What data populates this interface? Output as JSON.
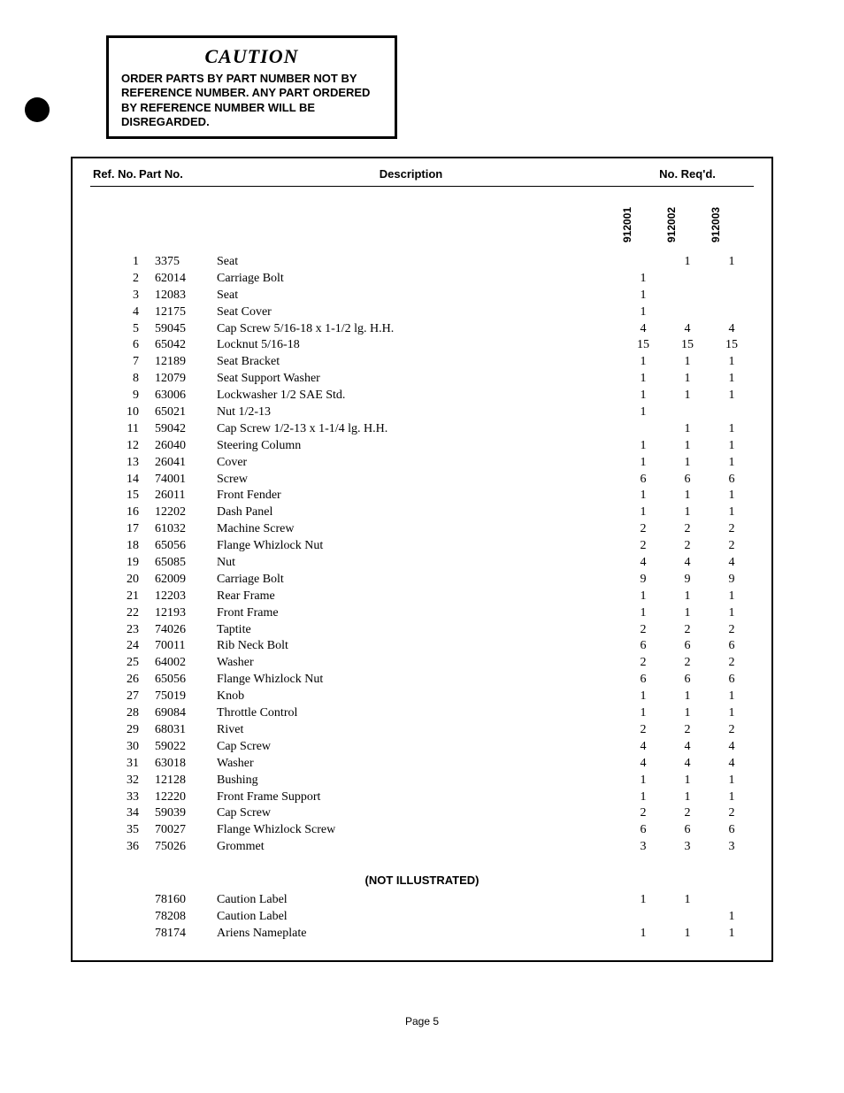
{
  "caution": {
    "title": "CAUTION",
    "text": "ORDER PARTS BY PART NUMBER NOT BY REFERENCE NUMBER. ANY PART ORDERED BY REFERENCE NUMBER WILL BE DISREGARDED."
  },
  "headers": {
    "ref": "Ref. No.",
    "part": "Part No.",
    "desc": "Description",
    "qty": "No. Req'd."
  },
  "models": [
    "912001",
    "912002",
    "912003"
  ],
  "rows": [
    {
      "ref": "1",
      "part": "3375",
      "desc": "Seat",
      "q": [
        "",
        "1",
        "1"
      ]
    },
    {
      "ref": "2",
      "part": "62014",
      "desc": "Carriage Bolt",
      "q": [
        "1",
        "",
        ""
      ]
    },
    {
      "ref": "3",
      "part": "12083",
      "desc": "Seat",
      "q": [
        "1",
        "",
        ""
      ]
    },
    {
      "ref": "4",
      "part": "12175",
      "desc": "Seat Cover",
      "q": [
        "1",
        "",
        ""
      ]
    },
    {
      "ref": "5",
      "part": "59045",
      "desc": "Cap Screw 5/16-18 x 1-1/2 lg. H.H.",
      "q": [
        "4",
        "4",
        "4"
      ]
    },
    {
      "ref": "6",
      "part": "65042",
      "desc": "Locknut 5/16-18",
      "q": [
        "15",
        "15",
        "15"
      ]
    },
    {
      "ref": "7",
      "part": "12189",
      "desc": "Seat Bracket",
      "q": [
        "1",
        "1",
        "1"
      ]
    },
    {
      "ref": "8",
      "part": "12079",
      "desc": "Seat Support Washer",
      "q": [
        "1",
        "1",
        "1"
      ]
    },
    {
      "ref": "9",
      "part": "63006",
      "desc": "Lockwasher 1/2 SAE Std.",
      "q": [
        "1",
        "1",
        "1"
      ]
    },
    {
      "ref": "10",
      "part": "65021",
      "desc": "Nut 1/2-13",
      "q": [
        "1",
        "",
        ""
      ]
    },
    {
      "ref": "11",
      "part": "59042",
      "desc": "Cap Screw 1/2-13 x 1-1/4 lg. H.H.",
      "q": [
        "",
        "1",
        "1"
      ]
    },
    {
      "ref": "12",
      "part": "26040",
      "desc": "Steering Column",
      "q": [
        "1",
        "1",
        "1"
      ]
    },
    {
      "ref": "13",
      "part": "26041",
      "desc": "Cover",
      "q": [
        "1",
        "1",
        "1"
      ]
    },
    {
      "ref": "14",
      "part": "74001",
      "desc": "Screw",
      "q": [
        "6",
        "6",
        "6"
      ]
    },
    {
      "ref": "15",
      "part": "26011",
      "desc": "Front Fender",
      "q": [
        "1",
        "1",
        "1"
      ]
    },
    {
      "ref": "16",
      "part": "12202",
      "desc": "Dash Panel",
      "q": [
        "1",
        "1",
        "1"
      ]
    },
    {
      "ref": "17",
      "part": "61032",
      "desc": "Machine Screw",
      "q": [
        "2",
        "2",
        "2"
      ]
    },
    {
      "ref": "18",
      "part": "65056",
      "desc": "Flange Whizlock Nut",
      "q": [
        "2",
        "2",
        "2"
      ]
    },
    {
      "ref": "19",
      "part": "65085",
      "desc": "Nut",
      "q": [
        "4",
        "4",
        "4"
      ]
    },
    {
      "ref": "20",
      "part": "62009",
      "desc": "Carriage Bolt",
      "q": [
        "9",
        "9",
        "9"
      ]
    },
    {
      "ref": "21",
      "part": "12203",
      "desc": "Rear Frame",
      "q": [
        "1",
        "1",
        "1"
      ]
    },
    {
      "ref": "22",
      "part": "12193",
      "desc": "Front Frame",
      "q": [
        "1",
        "1",
        "1"
      ]
    },
    {
      "ref": "23",
      "part": "74026",
      "desc": "Taptite",
      "q": [
        "2",
        "2",
        "2"
      ]
    },
    {
      "ref": "24",
      "part": "70011",
      "desc": "Rib Neck Bolt",
      "q": [
        "6",
        "6",
        "6"
      ]
    },
    {
      "ref": "25",
      "part": "64002",
      "desc": "Washer",
      "q": [
        "2",
        "2",
        "2"
      ]
    },
    {
      "ref": "26",
      "part": "65056",
      "desc": "Flange Whizlock Nut",
      "q": [
        "6",
        "6",
        "6"
      ]
    },
    {
      "ref": "27",
      "part": "75019",
      "desc": "Knob",
      "q": [
        "1",
        "1",
        "1"
      ]
    },
    {
      "ref": "28",
      "part": "69084",
      "desc": "Throttle Control",
      "q": [
        "1",
        "1",
        "1"
      ]
    },
    {
      "ref": "29",
      "part": "68031",
      "desc": "Rivet",
      "q": [
        "2",
        "2",
        "2"
      ]
    },
    {
      "ref": "30",
      "part": "59022",
      "desc": "Cap Screw",
      "q": [
        "4",
        "4",
        "4"
      ]
    },
    {
      "ref": "31",
      "part": "63018",
      "desc": "Washer",
      "q": [
        "4",
        "4",
        "4"
      ]
    },
    {
      "ref": "32",
      "part": "12128",
      "desc": "Bushing",
      "q": [
        "1",
        "1",
        "1"
      ]
    },
    {
      "ref": "33",
      "part": "12220",
      "desc": "Front Frame Support",
      "q": [
        "1",
        "1",
        "1"
      ]
    },
    {
      "ref": "34",
      "part": "59039",
      "desc": "Cap Screw",
      "q": [
        "2",
        "2",
        "2"
      ]
    },
    {
      "ref": "35",
      "part": "70027",
      "desc": "Flange Whizlock Screw",
      "q": [
        "6",
        "6",
        "6"
      ]
    },
    {
      "ref": "36",
      "part": "75026",
      "desc": "Grommet",
      "q": [
        "3",
        "3",
        "3"
      ]
    }
  ],
  "not_illustrated": {
    "title": "(NOT ILLUSTRATED)",
    "rows": [
      {
        "ref": "",
        "part": "78160",
        "desc": "Caution Label",
        "q": [
          "1",
          "1",
          ""
        ]
      },
      {
        "ref": "",
        "part": "78208",
        "desc": "Caution Label",
        "q": [
          "",
          "",
          "1"
        ]
      },
      {
        "ref": "",
        "part": "78174",
        "desc": "Ariens Nameplate",
        "q": [
          "1",
          "1",
          "1"
        ]
      }
    ]
  },
  "page": "Page 5"
}
